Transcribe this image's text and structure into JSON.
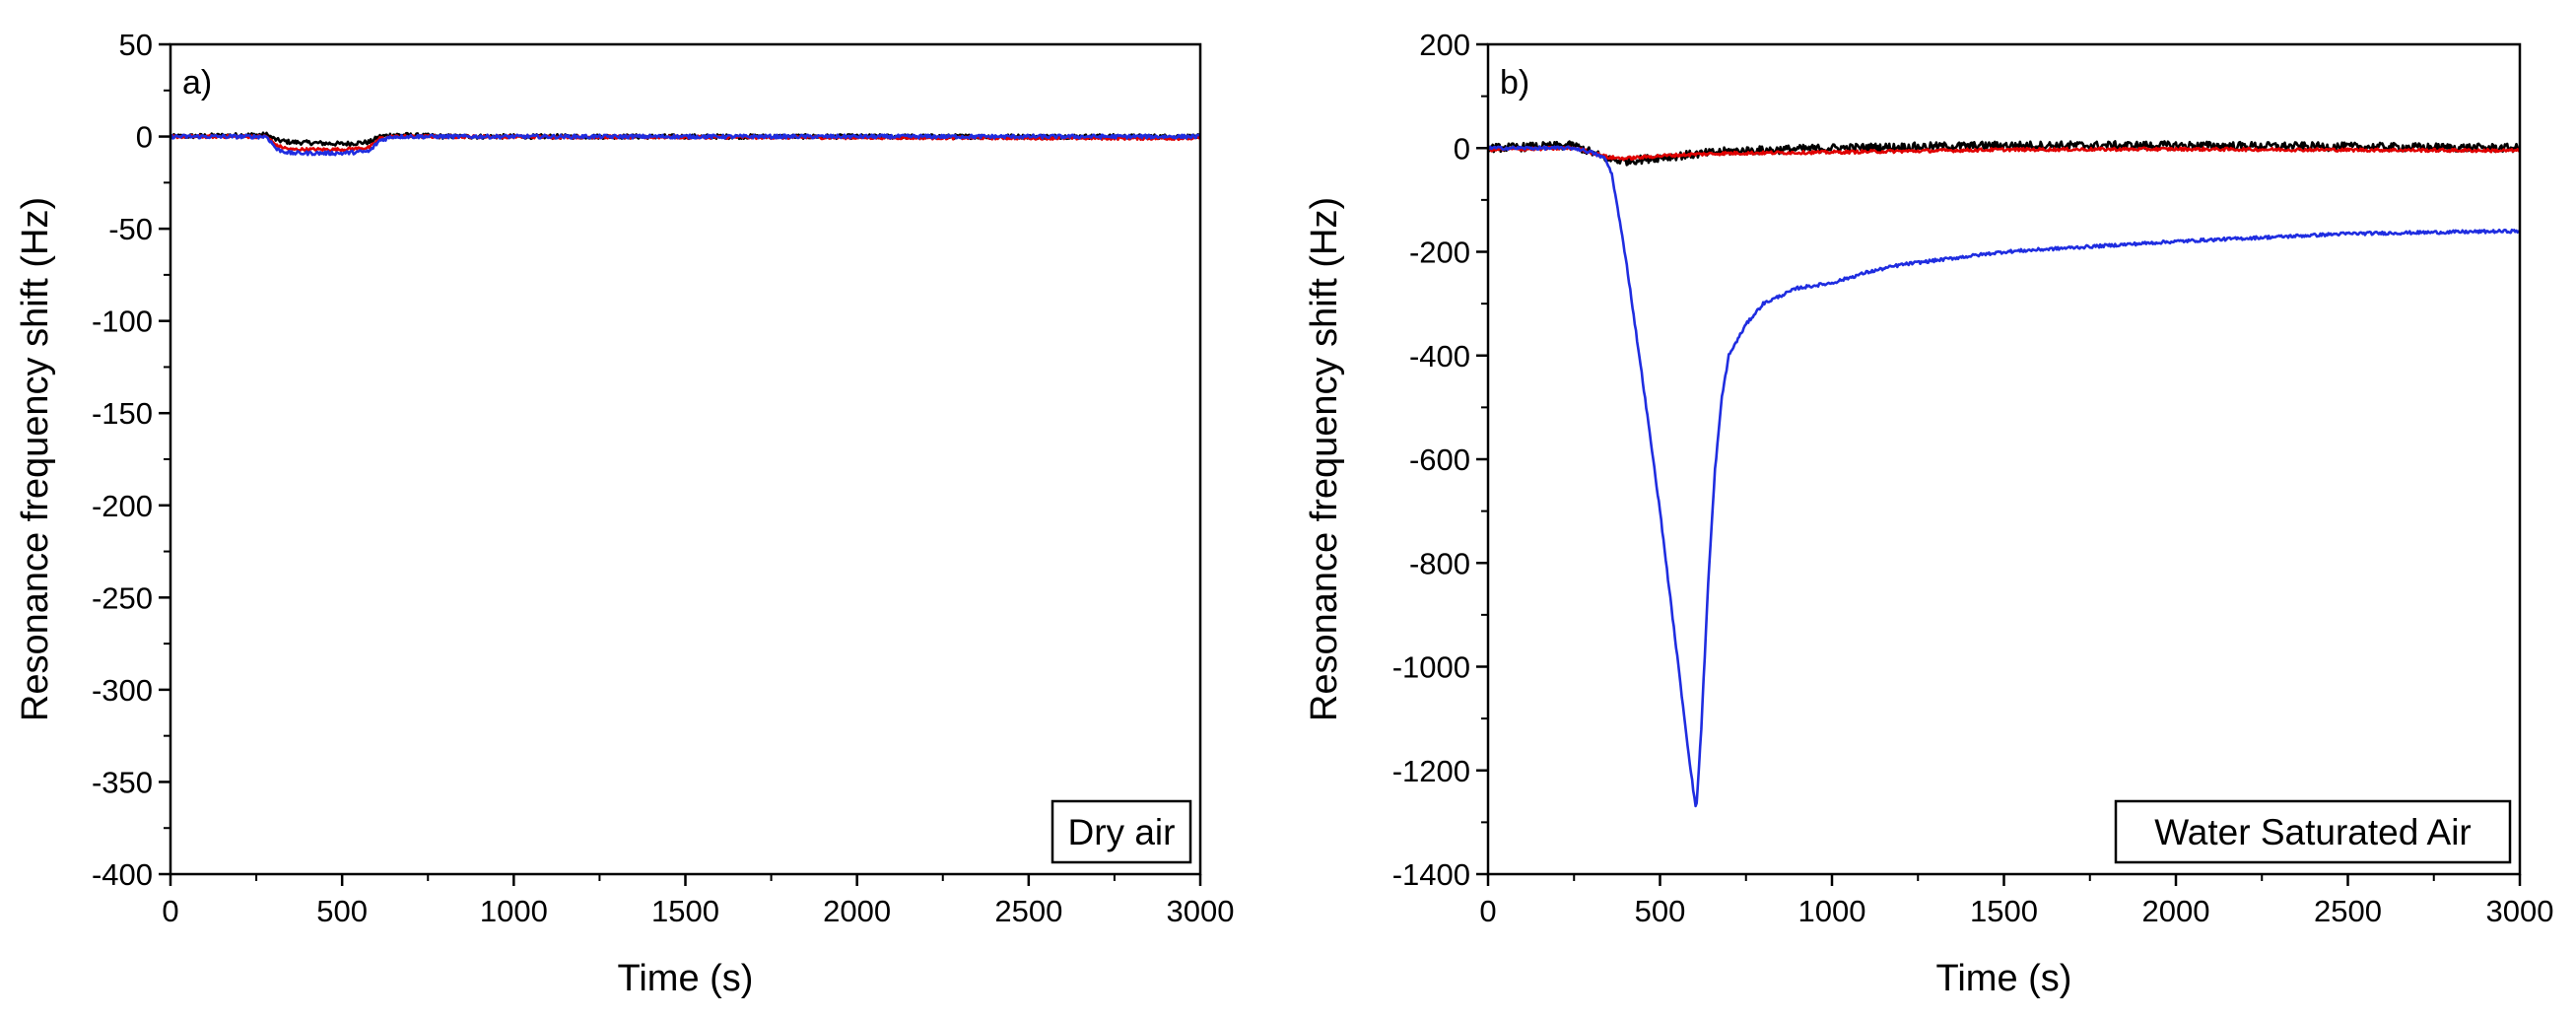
{
  "chart_data": [
    {
      "type": "line",
      "panel_label": "a)",
      "annotation": "Dry air",
      "annotation_position": "bottom-right",
      "xlabel": "Time (s)",
      "ylabel": "Resonance frequency shift (Hz)",
      "xlim": [
        0,
        3000
      ],
      "ylim": [
        -400,
        50
      ],
      "xticks": [
        0,
        500,
        1000,
        1500,
        2000,
        2500,
        3000
      ],
      "yticks": [
        50,
        0,
        -50,
        -100,
        -150,
        -200,
        -250,
        -300,
        -350,
        -400
      ],
      "series": [
        {
          "name": "black",
          "color": "#000000",
          "noise": 1.2,
          "x": [
            0,
            280,
            310,
            350,
            500,
            580,
            610,
            650,
            800,
            3000
          ],
          "y": [
            0,
            1,
            -2,
            -3,
            -4,
            -3,
            0,
            1,
            0,
            0
          ]
        },
        {
          "name": "red",
          "color": "#e00000",
          "noise": 0.8,
          "x": [
            0,
            280,
            310,
            350,
            500,
            580,
            610,
            650,
            800,
            3000
          ],
          "y": [
            0,
            0,
            -5,
            -7,
            -7,
            -6,
            -1,
            0,
            0,
            -1
          ]
        },
        {
          "name": "blue",
          "color": "#1f2de0",
          "noise": 1.0,
          "x": [
            0,
            280,
            310,
            350,
            500,
            580,
            610,
            650,
            800,
            3000
          ],
          "y": [
            0,
            0,
            -7,
            -9,
            -9,
            -8,
            -2,
            0,
            0,
            0
          ]
        }
      ]
    },
    {
      "type": "line",
      "panel_label": "b)",
      "annotation": "Water Saturated Air",
      "annotation_position": "bottom-right",
      "xlabel": "Time (s)",
      "ylabel": "Resonance frequency shift (Hz)",
      "xlim": [
        0,
        3000
      ],
      "ylim": [
        -1400,
        200
      ],
      "xticks": [
        0,
        500,
        1000,
        1500,
        2000,
        2500,
        3000
      ],
      "yticks": [
        200,
        0,
        -200,
        -400,
        -600,
        -800,
        -1000,
        -1200,
        -1400
      ],
      "series": [
        {
          "name": "black",
          "color": "#000000",
          "noise": 8,
          "x": [
            0,
            250,
            300,
            350,
            400,
            500,
            600,
            700,
            1000,
            1500,
            2000,
            3000
          ],
          "y": [
            0,
            5,
            -8,
            -22,
            -25,
            -18,
            -12,
            -6,
            0,
            5,
            5,
            0
          ]
        },
        {
          "name": "red",
          "color": "#e00000",
          "noise": 3,
          "x": [
            0,
            250,
            300,
            350,
            400,
            500,
            600,
            700,
            1000,
            1500,
            2000,
            3000
          ],
          "y": [
            -3,
            0,
            -8,
            -18,
            -20,
            -15,
            -12,
            -10,
            -8,
            -3,
            -2,
            -5
          ]
        },
        {
          "name": "blue",
          "color": "#1f2de0",
          "noise": 3,
          "x": [
            0,
            250,
            300,
            340,
            360,
            400,
            450,
            500,
            550,
            580,
            605,
            620,
            640,
            660,
            680,
            700,
            750,
            800,
            900,
            1000,
            1100,
            1200,
            1500,
            2000,
            2500,
            3000
          ],
          "y": [
            0,
            0,
            -8,
            -20,
            -50,
            -210,
            -450,
            -700,
            -980,
            -1150,
            -1280,
            -1120,
            -840,
            -620,
            -480,
            -400,
            -340,
            -300,
            -270,
            -260,
            -240,
            -225,
            -200,
            -180,
            -165,
            -160
          ]
        }
      ]
    }
  ]
}
